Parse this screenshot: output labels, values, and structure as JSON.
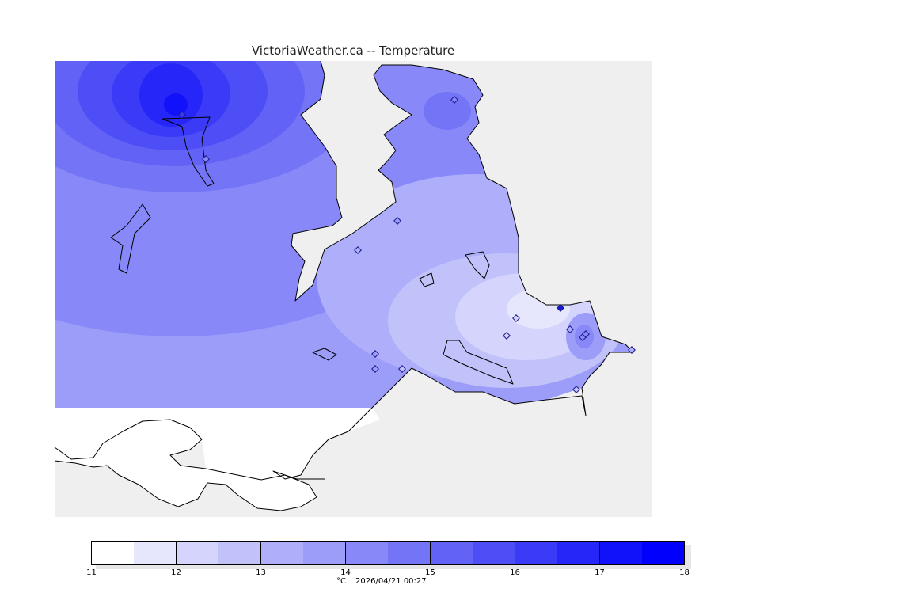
{
  "header": {
    "title": "VictoriaWeather.ca -- Temperature"
  },
  "colors": {
    "background": "#ffffff",
    "land": "#efefef",
    "coastline": "#000000",
    "station_marker": "#1a1a8a",
    "station_highlight": "#1a1adb"
  },
  "legend": {
    "unit": "°C",
    "timestamp": "2026/04/21 00:27",
    "ticks": [
      "11",
      "12",
      "13",
      "14",
      "15",
      "16",
      "17",
      "18"
    ],
    "bands": [
      {
        "from": 11.0,
        "to": 11.5,
        "color": "#ffffff"
      },
      {
        "from": 11.5,
        "to": 12.0,
        "color": "#e6e6fd"
      },
      {
        "from": 12.0,
        "to": 12.5,
        "color": "#d4d4fc"
      },
      {
        "from": 12.5,
        "to": 13.0,
        "color": "#c2c2fb"
      },
      {
        "from": 13.0,
        "to": 13.5,
        "color": "#aeaefa"
      },
      {
        "from": 13.5,
        "to": 14.0,
        "color": "#9c9cf9"
      },
      {
        "from": 14.0,
        "to": 14.5,
        "color": "#8888f8"
      },
      {
        "from": 14.5,
        "to": 15.0,
        "color": "#7474f7"
      },
      {
        "from": 15.0,
        "to": 15.5,
        "color": "#6262f6"
      },
      {
        "from": 15.5,
        "to": 16.0,
        "color": "#4e4ef6"
      },
      {
        "from": 16.0,
        "to": 16.5,
        "color": "#3a3af7"
      },
      {
        "from": 16.5,
        "to": 17.0,
        "color": "#2626f8"
      },
      {
        "from": 17.0,
        "to": 17.5,
        "color": "#1212fa"
      },
      {
        "from": 17.5,
        "to": 18.0,
        "color": "#0000fc"
      }
    ]
  }
}
